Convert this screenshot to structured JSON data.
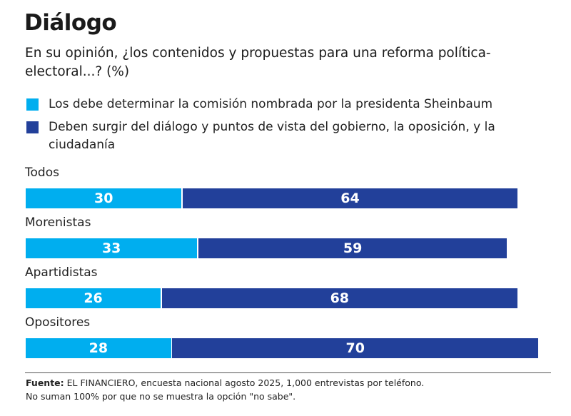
{
  "title": "Diálogo",
  "subtitle": "En su opinión, ¿los contenidos y propuestas para una reforma política-electoral...? (%)",
  "colors": {
    "light": "#00aeef",
    "dark": "#22409a"
  },
  "chart_data": {
    "type": "bar",
    "orientation": "horizontal",
    "stacked": true,
    "title": "Diálogo",
    "subtitle": "En su opinión, ¿los contenidos y propuestas para una reforma política-electoral...? (%)",
    "categories": [
      "Todos",
      "Morenistas",
      "Apartidistas",
      "Opositores"
    ],
    "series": [
      {
        "name": "Los debe determinar la comisión nombrada por la presidenta Sheinbaum",
        "color": "#00aeef",
        "values": [
          30,
          33,
          26,
          28
        ]
      },
      {
        "name": "Deben surgir del diálogo y puntos de vista del gobierno, la oposición, y la ciudadanía",
        "color": "#22409a",
        "values": [
          64,
          59,
          68,
          70
        ]
      }
    ],
    "xlim": [
      0,
      100
    ],
    "grid": false,
    "legend": "top-left",
    "xlabel": "",
    "ylabel": ""
  },
  "footer": {
    "source_label": "Fuente:",
    "source_text": " EL FINANCIERO, encuesta nacional agosto 2025, 1,000 entrevistas por teléfono.",
    "note": "No suman 100% por que no se muestra la opción \"no sabe\"."
  }
}
